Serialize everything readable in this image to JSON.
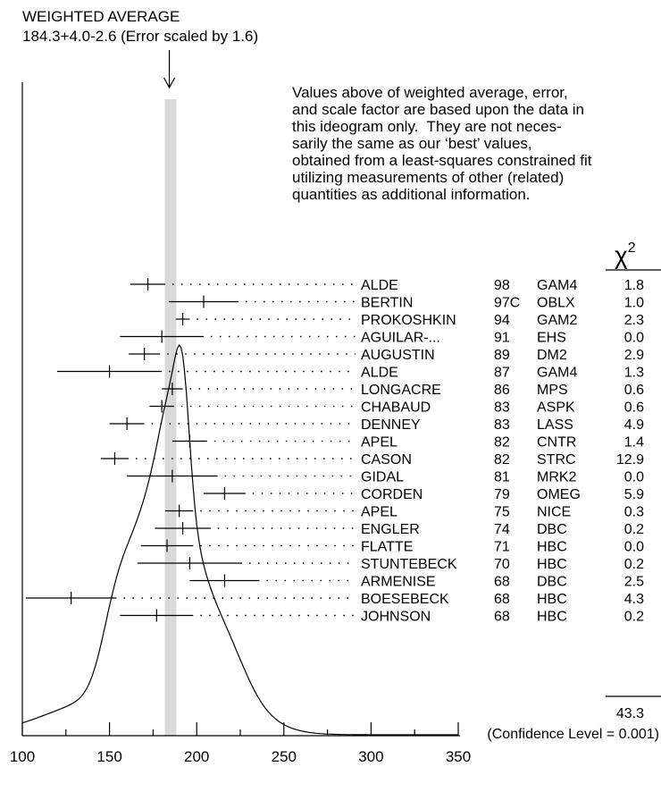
{
  "chart_data": {
    "type": "ideogram",
    "title": "WEIGHTED AVERAGE",
    "subtitle": "184.3+4.0-2.6 (Error scaled by 1.6)",
    "weighted_average": 184.3,
    "band": [
      181.7,
      188.3
    ],
    "xlim": [
      100,
      350
    ],
    "x_ticks": [
      100,
      150,
      200,
      250,
      300,
      350
    ],
    "note_lines": [
      "Values above of weighted average, error,",
      "and scale factor are based upon the data in",
      "this ideogram only.  They are not neces-",
      "sarily the same as our ‘best’ values,",
      "obtained from a least-squares constrained fit",
      "utilizing measurements of other (related)",
      "quantities as additional information."
    ],
    "chi2_label": "χ",
    "chi2_superscript": "2",
    "measurements": [
      {
        "author": "ALDE",
        "year": "98",
        "tech": "GAM4",
        "chi2": "1.8",
        "value": 172,
        "lo": 162,
        "hi": 182
      },
      {
        "author": "BERTIN",
        "year": "97C",
        "tech": "OBLX",
        "chi2": "1.0",
        "value": 204,
        "lo": 184,
        "hi": 224
      },
      {
        "author": "PROKOSHKIN",
        "year": "94",
        "tech": "GAM2",
        "chi2": "2.3",
        "value": 192,
        "lo": 188,
        "hi": 196
      },
      {
        "author": "AGUILAR-...",
        "year": "91",
        "tech": "EHS",
        "chi2": "0.0",
        "value": 180,
        "lo": 156,
        "hi": 204
      },
      {
        "author": "AUGUSTIN",
        "year": "89",
        "tech": "DM2",
        "chi2": "2.9",
        "value": 170,
        "lo": 161,
        "hi": 179
      },
      {
        "author": "ALDE",
        "year": "87",
        "tech": "GAM4",
        "chi2": "1.3",
        "value": 150,
        "lo": 120,
        "hi": 180
      },
      {
        "author": "LONGACRE",
        "year": "86",
        "tech": "MPS",
        "chi2": "0.6",
        "value": 186,
        "lo": 180,
        "hi": 192
      },
      {
        "author": "CHABAUD",
        "year": "83",
        "tech": "ASPK",
        "chi2": "0.6",
        "value": 180,
        "lo": 173,
        "hi": 187
      },
      {
        "author": "DENNEY",
        "year": "83",
        "tech": "LASS",
        "chi2": "4.9",
        "value": 160,
        "lo": 150,
        "hi": 170
      },
      {
        "author": "APEL",
        "year": "82",
        "tech": "CNTR",
        "chi2": "1.4",
        "value": 196,
        "lo": 186,
        "hi": 206
      },
      {
        "author": "CASON",
        "year": "82",
        "tech": "STRC",
        "chi2": "12.9",
        "value": 153,
        "lo": 145,
        "hi": 161
      },
      {
        "author": "GIDAL",
        "year": "81",
        "tech": "MRK2",
        "chi2": "0.0",
        "value": 186,
        "lo": 160,
        "hi": 212
      },
      {
        "author": "CORDEN",
        "year": "79",
        "tech": "OMEG",
        "chi2": "5.9",
        "value": 216,
        "lo": 204,
        "hi": 228
      },
      {
        "author": "APEL",
        "year": "75",
        "tech": "NICE",
        "chi2": "0.3",
        "value": 190,
        "lo": 182,
        "hi": 198
      },
      {
        "author": "ENGLER",
        "year": "74",
        "tech": "DBC",
        "chi2": "0.2",
        "value": 192,
        "lo": 176,
        "hi": 208
      },
      {
        "author": "FLATTE",
        "year": "71",
        "tech": "HBC",
        "chi2": "0.0",
        "value": 183,
        "lo": 168,
        "hi": 198
      },
      {
        "author": "STUNTEBECK",
        "year": "70",
        "tech": "HBC",
        "chi2": "0.2",
        "value": 196,
        "lo": 166,
        "hi": 226
      },
      {
        "author": "ARMENISE",
        "year": "68",
        "tech": "DBC",
        "chi2": "2.5",
        "value": 216,
        "lo": 196,
        "hi": 236
      },
      {
        "author": "BOESEBECK",
        "year": "68",
        "tech": "HBC",
        "chi2": "4.3",
        "value": 128,
        "lo": 102,
        "hi": 154
      },
      {
        "author": "JOHNSON",
        "year": "68",
        "tech": "HBC",
        "chi2": "0.2",
        "value": 177,
        "lo": 156,
        "hi": 198
      }
    ],
    "chi2_total": "43.3",
    "confidence_text": "(Confidence Level = 0.001)",
    "band_color": "#d9d9d9"
  }
}
